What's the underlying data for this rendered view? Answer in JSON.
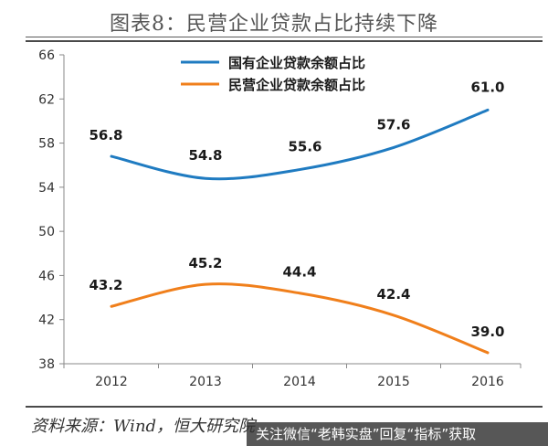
{
  "header": {
    "title": "图表8：民营企业贷款占比持续下降"
  },
  "footer": {
    "source": "资料来源：Wind，恒大研究院",
    "watermark": "关注微信“老韩实盘”回复“指标”获取"
  },
  "colors": {
    "series_blue": "#1f7bc1",
    "series_orange": "#f07f1b",
    "axis": "#888888",
    "text": "#1a1a1a"
  },
  "chart_data": {
    "type": "line",
    "title": "图表8：民营企业贷款占比持续下降",
    "xlabel": "",
    "ylabel": "",
    "categories": [
      "2012",
      "2013",
      "2014",
      "2015",
      "2016"
    ],
    "ylim": [
      38,
      66
    ],
    "yticks": [
      38,
      42,
      46,
      50,
      54,
      58,
      62,
      66
    ],
    "grid": false,
    "legend": "top-center",
    "series": [
      {
        "name": "国有企业贷款余额占比",
        "color": "#1f7bc1",
        "values": [
          56.8,
          54.8,
          55.6,
          57.6,
          61.0
        ],
        "labels": [
          "56.8",
          "54.8",
          "55.6",
          "57.6",
          "61.0"
        ]
      },
      {
        "name": "民营企业贷款余额占比",
        "color": "#f07f1b",
        "values": [
          43.2,
          45.2,
          44.4,
          42.4,
          39.0
        ],
        "labels": [
          "43.2",
          "45.2",
          "44.4",
          "42.4",
          "39.0"
        ]
      }
    ]
  }
}
